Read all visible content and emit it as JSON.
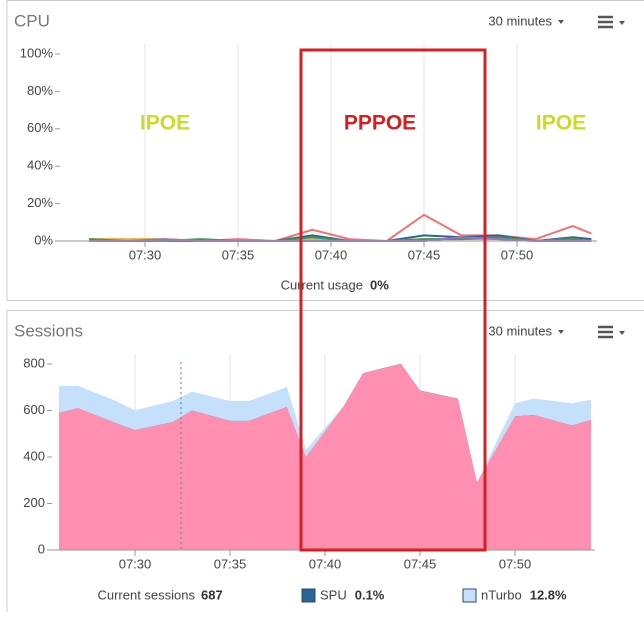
{
  "chart_data": [
    {
      "type": "line",
      "title": "CPU",
      "range_menu": "30 minutes",
      "x": [
        "07:27",
        "07:29",
        "07:31",
        "07:33",
        "07:35",
        "07:37",
        "07:39",
        "07:41",
        "07:43",
        "07:45",
        "07:47",
        "07:49",
        "07:51",
        "07:53",
        "07:54"
      ],
      "xlim": [
        "07:25",
        "07:55"
      ],
      "xticks": [
        "07:30",
        "07:35",
        "07:40",
        "07:45",
        "07:50"
      ],
      "ylim": [
        0,
        100
      ],
      "yticks": [
        {
          "value": 0,
          "label": "0%"
        },
        {
          "value": 20,
          "label": "20%"
        },
        {
          "value": 40,
          "label": "40%"
        },
        {
          "value": 60,
          "label": "60%"
        },
        {
          "value": 80,
          "label": "80%"
        },
        {
          "value": 100,
          "label": "100%"
        }
      ],
      "grid": true,
      "series": [
        {
          "color": "#f07474",
          "values": [
            1,
            0,
            0,
            0,
            1,
            0,
            6,
            1,
            0,
            14,
            3,
            3,
            1,
            8,
            4
          ]
        },
        {
          "color": "#2a6496",
          "values": [
            0.5,
            0,
            0,
            0,
            0,
            0,
            3,
            0,
            0,
            3,
            2,
            3,
            0,
            2,
            1
          ]
        },
        {
          "color": "#f0b030",
          "values": [
            1,
            1,
            1,
            0,
            0,
            0,
            1,
            0,
            0,
            1,
            1,
            1,
            0,
            1,
            0
          ]
        },
        {
          "color": "#3a9a5a",
          "values": [
            1,
            0,
            0,
            1,
            0,
            0,
            2,
            0,
            0,
            1,
            1,
            2,
            0,
            1,
            0
          ]
        },
        {
          "color": "#a070c0",
          "values": [
            0,
            0,
            1,
            0,
            0,
            0,
            0,
            0,
            0,
            0,
            2,
            1,
            0,
            0,
            0
          ]
        }
      ],
      "annotations": [
        {
          "text": "IPOE",
          "color": "#c8dc28"
        },
        {
          "text": "PPPOE",
          "color": "#d42020"
        },
        {
          "text": "IPOE",
          "color": "#c8dc28"
        }
      ],
      "footer": {
        "label": "Current usage",
        "value": "0%"
      }
    },
    {
      "type": "area",
      "title": "Sessions",
      "range_menu": "30 minutes",
      "stacked": true,
      "x": [
        "07:26",
        "07:27",
        "07:29",
        "07:30",
        "07:32",
        "07:33",
        "07:35",
        "07:36",
        "07:38",
        "07:39",
        "07:41",
        "07:42",
        "07:44",
        "07:45",
        "07:47",
        "07:48",
        "07:50",
        "07:51",
        "07:53",
        "07:54"
      ],
      "xlim": [
        "07:25",
        "07:55"
      ],
      "xticks": [
        "07:30",
        "07:35",
        "07:40",
        "07:45",
        "07:50"
      ],
      "ylim": [
        0,
        800
      ],
      "yticks": [
        0,
        200,
        400,
        600,
        800
      ],
      "grid": true,
      "series": [
        {
          "color": "#ff8fb1",
          "values": [
            590,
            610,
            545,
            515,
            550,
            600,
            555,
            555,
            615,
            400,
            620,
            760,
            800,
            685,
            650,
            290,
            575,
            580,
            535,
            560
          ]
        },
        {
          "name": "SPU",
          "legend_value": "0.1%",
          "color": "#2a6496",
          "values": [
            1,
            1,
            1,
            1,
            1,
            1,
            1,
            1,
            1,
            1,
            1,
            1,
            1,
            1,
            1,
            1,
            1,
            1,
            1,
            1
          ]
        },
        {
          "name": "nTurbo",
          "legend_value": "12.8%",
          "color": "#c5e0fb",
          "values": [
            115,
            95,
            95,
            85,
            90,
            80,
            85,
            85,
            85,
            30,
            0,
            0,
            0,
            0,
            0,
            0,
            55,
            70,
            95,
            85
          ]
        }
      ],
      "footer": {
        "label": "Current sessions",
        "value": 687
      }
    }
  ]
}
